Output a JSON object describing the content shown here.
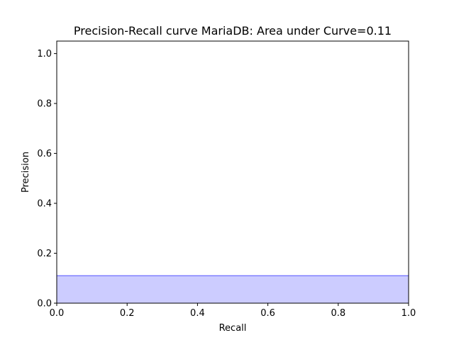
{
  "chart_data": {
    "type": "area",
    "title": "Precision-Recall curve MariaDB: Area under Curve=0.11",
    "xlabel": "Recall",
    "ylabel": "Precision",
    "xlim": [
      0.0,
      1.0
    ],
    "ylim": [
      0.0,
      1.05
    ],
    "xticks": [
      0.0,
      0.2,
      0.4,
      0.6,
      0.8,
      1.0
    ],
    "xtick_labels": [
      "0.0",
      "0.2",
      "0.4",
      "0.6",
      "0.8",
      "1.0"
    ],
    "yticks": [
      0.0,
      0.2,
      0.4,
      0.6,
      0.8,
      1.0
    ],
    "ytick_labels": [
      "0.0",
      "0.2",
      "0.4",
      "0.6",
      "0.8",
      "1.0"
    ],
    "grid": false,
    "series": [
      {
        "x": [
          0.0,
          1.0
        ],
        "y": [
          0.11,
          0.11
        ],
        "step": "post",
        "line_color": "#0000ff",
        "line_alpha": 0.2,
        "fill_color": "#0000ff",
        "fill_alpha": 0.2
      }
    ]
  }
}
